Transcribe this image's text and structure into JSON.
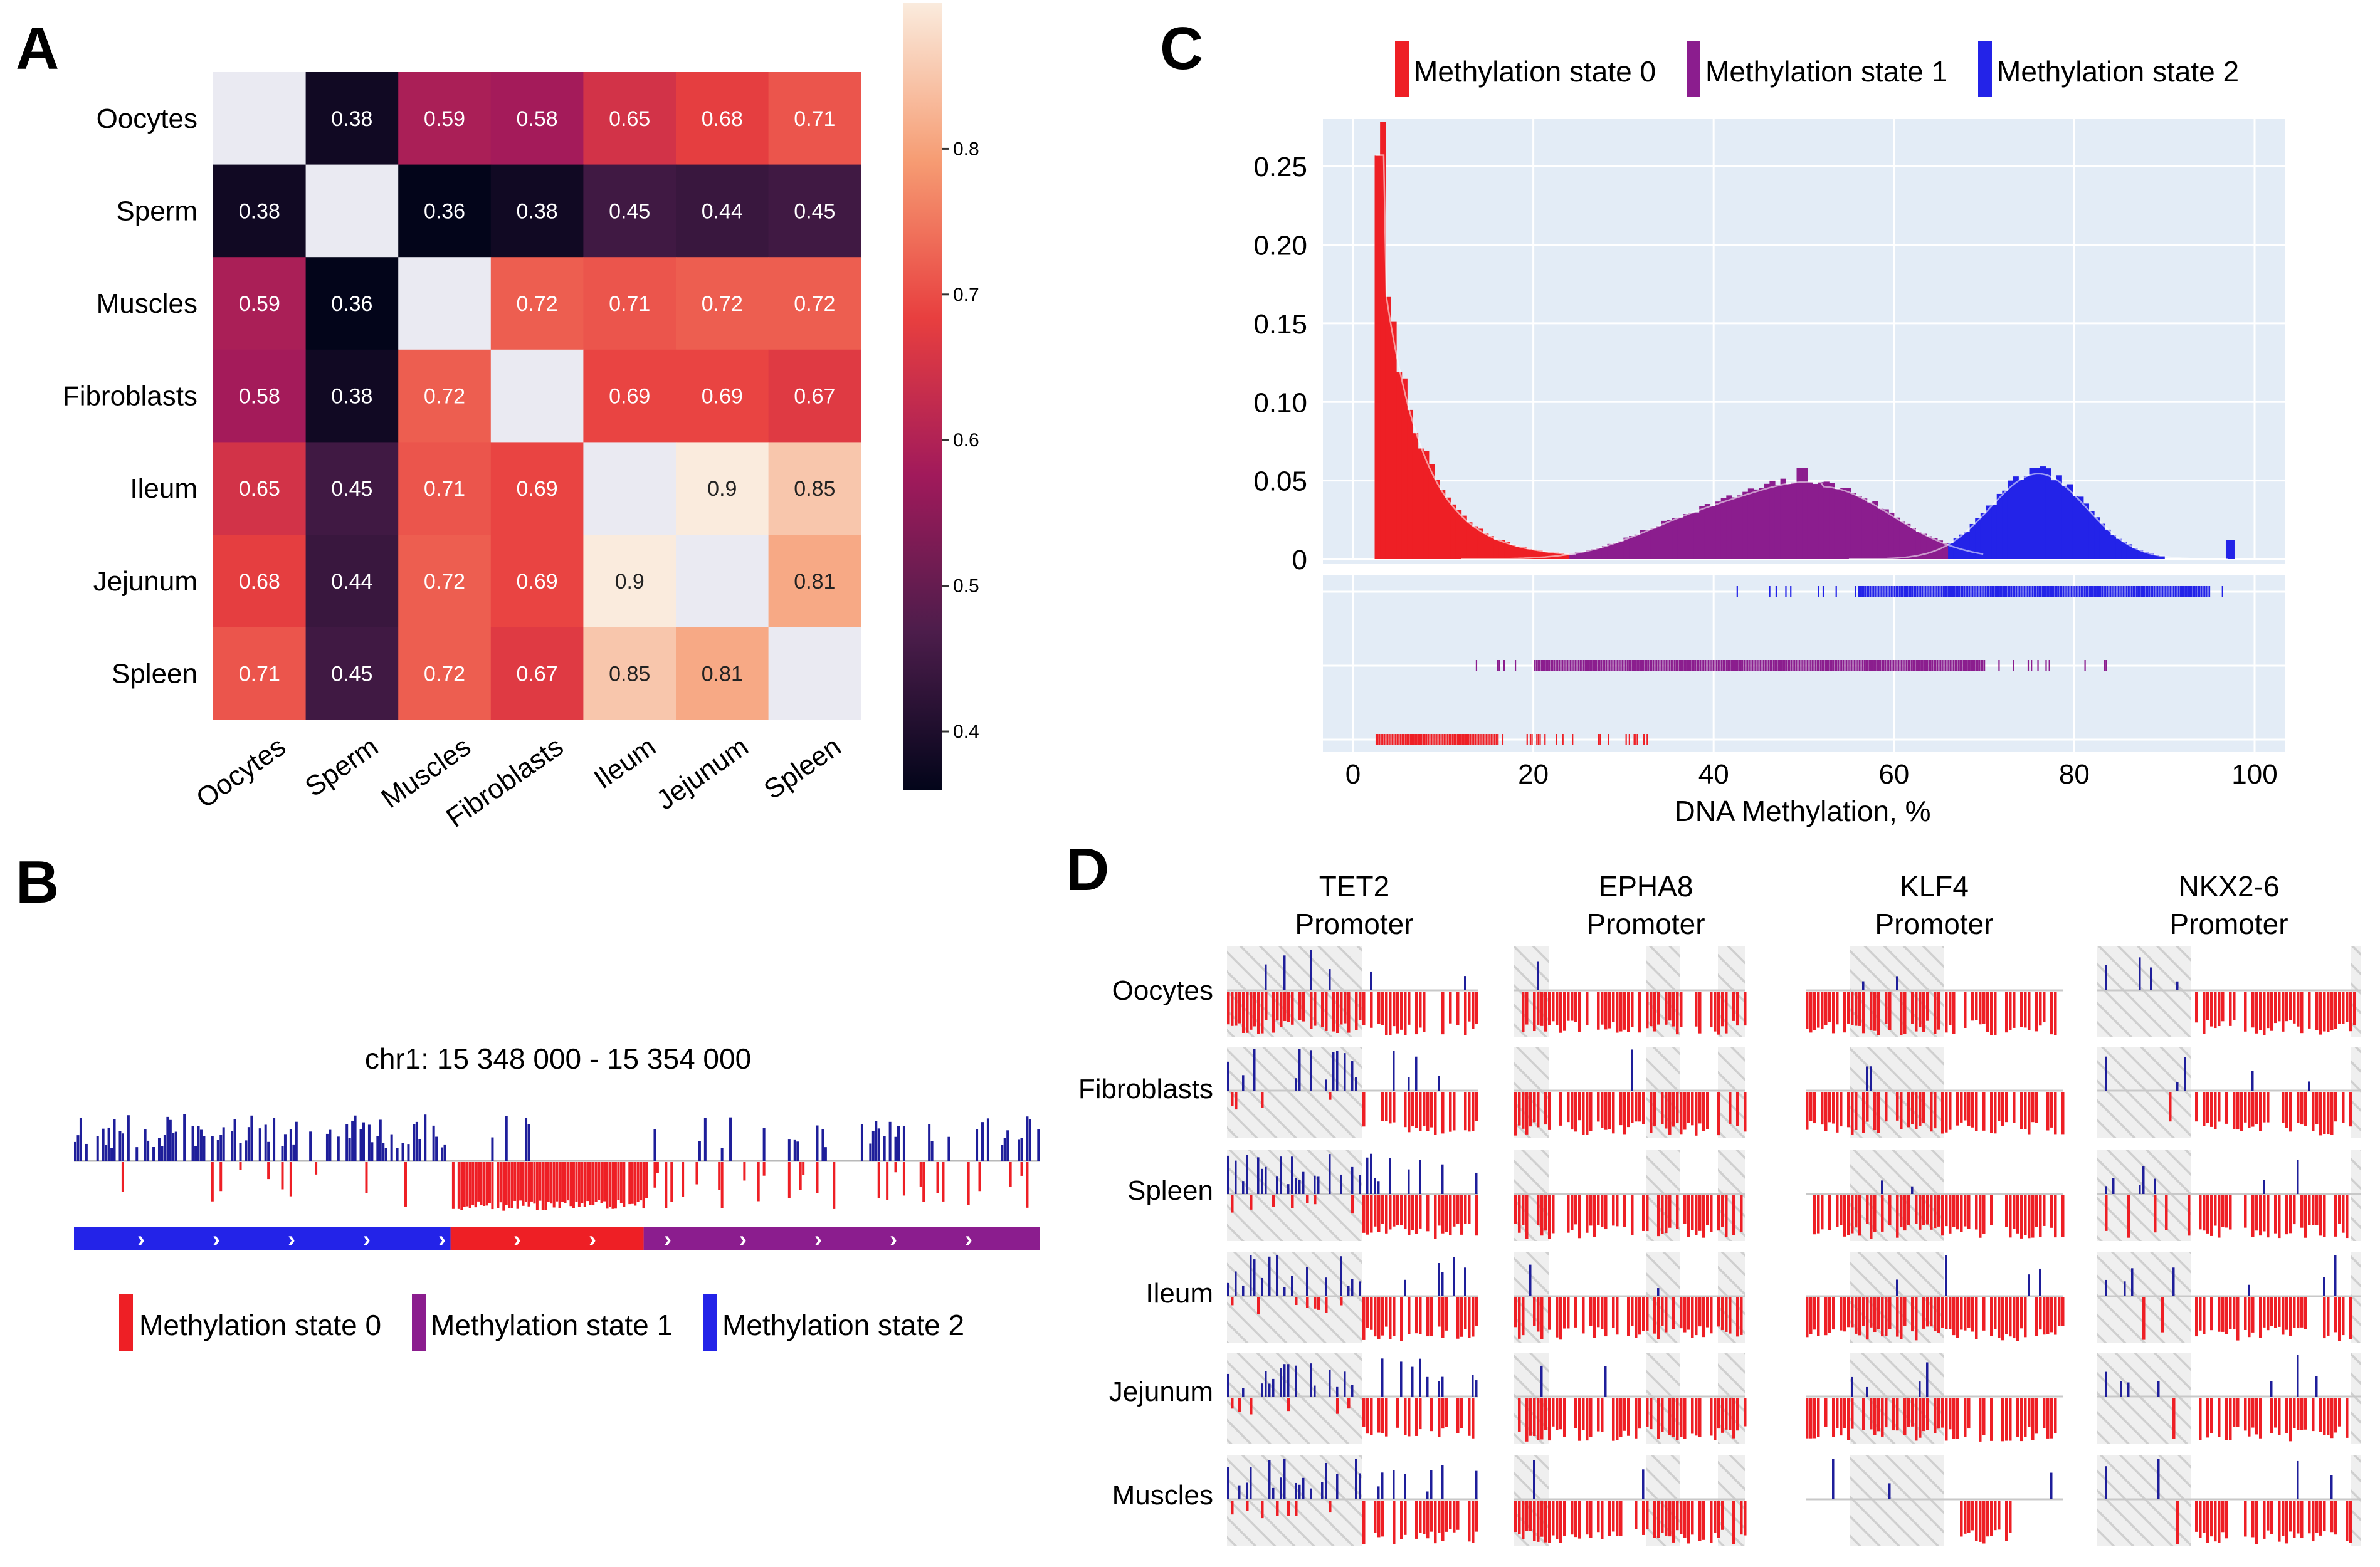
{
  "panels": {
    "a": "A",
    "b": "B",
    "c": "C",
    "d": "D"
  },
  "colors": {
    "state0": "#ee1f25",
    "state1": "#8b1d8e",
    "state2": "#2323e8",
    "track_blue": "#1e1e9a",
    "track_red": "#ee1f25",
    "plot_bg": "#e3ecf6",
    "hatch": "#d5d5d5"
  },
  "legend": {
    "state0": "Methylation state 0",
    "state1": "Methylation state 1",
    "state2": "Methylation state 2"
  },
  "panel_b": {
    "title": "chr1: 15 348 000 - 15 354 000",
    "segments": [
      {
        "state": 2,
        "from": 0.0,
        "to": 0.39
      },
      {
        "state": 0,
        "from": 0.39,
        "to": 0.59
      },
      {
        "state": 1,
        "from": 0.59,
        "to": 1.0
      }
    ],
    "arrow_glyph": "›"
  },
  "panel_d": {
    "genes": [
      {
        "name": "TET2",
        "sub": "Promoter"
      },
      {
        "name": "EPHA8",
        "sub": "Promoter"
      },
      {
        "name": "KLF4",
        "sub": "Promoter"
      },
      {
        "name": "NKX2-6",
        "sub": "Promoter"
      }
    ],
    "tissues": [
      "Oocytes",
      "Fibroblasts",
      "Spleen",
      "Ileum",
      "Jejunum",
      "Muscles"
    ]
  },
  "chart_data": [
    {
      "type": "heatmap",
      "title": "",
      "rows": [
        "Oocytes",
        "Sperm",
        "Muscles",
        "Fibroblasts",
        "Ileum",
        "Jejunum",
        "Spleen"
      ],
      "cols": [
        "Oocytes",
        "Sperm",
        "Muscles",
        "Fibroblasts",
        "Ileum",
        "Jejunum",
        "Spleen"
      ],
      "values": [
        [
          null,
          0.38,
          0.59,
          0.58,
          0.65,
          0.68,
          0.71
        ],
        [
          0.38,
          null,
          0.36,
          0.38,
          0.45,
          0.44,
          0.45
        ],
        [
          0.59,
          0.36,
          null,
          0.72,
          0.71,
          0.72,
          0.72
        ],
        [
          0.58,
          0.38,
          0.72,
          null,
          0.69,
          0.69,
          0.67
        ],
        [
          0.65,
          0.45,
          0.71,
          0.69,
          null,
          0.9,
          0.85
        ],
        [
          0.68,
          0.44,
          0.72,
          0.69,
          0.9,
          null,
          0.81
        ],
        [
          0.71,
          0.45,
          0.72,
          0.67,
          0.85,
          0.81,
          null
        ]
      ],
      "colorbar": {
        "min": 0.36,
        "max": 0.9,
        "ticks": [
          "0.4",
          "0.5",
          "0.6",
          "0.7",
          "0.8"
        ]
      }
    },
    {
      "type": "bar",
      "title": "",
      "xlabel": "DNA Methylation, %",
      "ylabel": "",
      "xlim": [
        0,
        100
      ],
      "ylim": [
        0,
        0.27
      ],
      "xticks": [
        "0",
        "20",
        "40",
        "60",
        "80",
        "100"
      ],
      "yticks": [
        "0",
        "0.05",
        "0.10",
        "0.15",
        "0.20",
        "0.25"
      ],
      "series": [
        {
          "name": "Methylation state 0",
          "peak_x": 2.5,
          "peak_y": 0.265,
          "range": [
            2.5,
            25
          ]
        },
        {
          "name": "Methylation state 1",
          "peak_x": 52,
          "peak_y": 0.047,
          "range": [
            12,
            70
          ]
        },
        {
          "name": "Methylation state 2",
          "peak_x": 76,
          "peak_y": 0.056,
          "range": [
            55,
            97
          ]
        }
      ],
      "rug_ranges": [
        {
          "name": "Methylation state 2",
          "range": [
            42,
            97
          ]
        },
        {
          "name": "Methylation state 1",
          "range": [
            12,
            84
          ]
        },
        {
          "name": "Methylation state 0",
          "range": [
            2.5,
            34
          ]
        }
      ]
    }
  ]
}
